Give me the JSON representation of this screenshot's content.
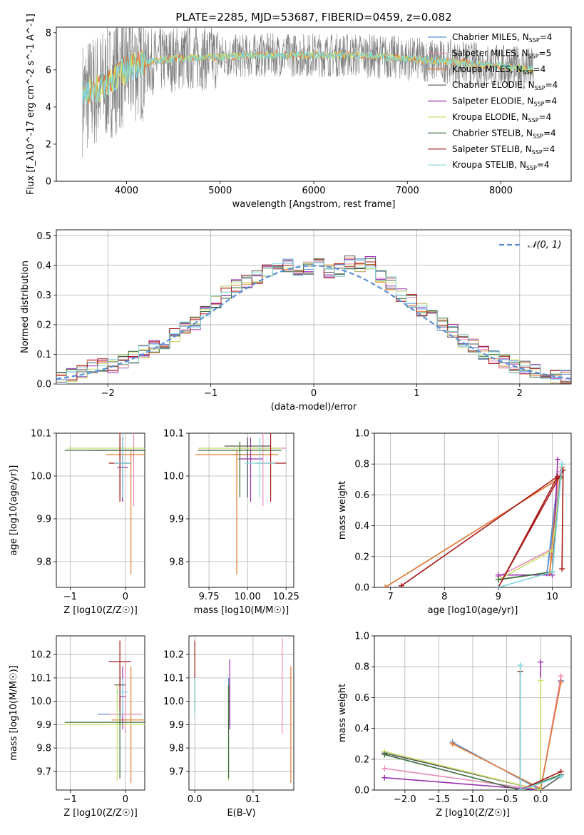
{
  "colors": {
    "chabrier_miles": "#5b8fd6",
    "salpeter_miles": "#e88ab8",
    "kroupa_miles": "#e87a2e",
    "chabrier_elodie": "#555555",
    "salpeter_elodie": "#9a2fb0",
    "kroupa_elodie": "#c8e06a",
    "chabrier_stelib": "#3a6e3a",
    "salpeter_stelib": "#a81818",
    "kroupa_stelib": "#7fd6dc",
    "normal": "#5b8fd6",
    "grid": "#b0b0b0"
  },
  "chart_data": [
    {
      "id": "spectrum",
      "type": "line",
      "title": "PLATE=2285, MJD=53687, FIBERID=0459, z=0.082",
      "xlabel": "wavelength [Angstrom, rest frame]",
      "ylabel": "Flux [f_λ10^-17 erg cm^-2 s^-1 A^-1]",
      "xlim": [
        3250,
        8750
      ],
      "ylim": [
        0,
        8.3
      ],
      "xticks": [
        "4000",
        "5000",
        "6000",
        "7000",
        "8000"
      ],
      "yticks": [
        "0",
        "2",
        "4",
        "6",
        "8"
      ],
      "grid": false,
      "legend_position": "top-right",
      "data_range": [
        3530,
        8350
      ],
      "continuum": [
        [
          3530,
          4.5
        ],
        [
          3700,
          5.0
        ],
        [
          3900,
          5.7
        ],
        [
          4100,
          6.3
        ],
        [
          4500,
          6.6
        ],
        [
          5000,
          6.7
        ],
        [
          5500,
          6.8
        ],
        [
          6000,
          6.8
        ],
        [
          6500,
          6.8
        ],
        [
          7000,
          6.6
        ],
        [
          7500,
          6.4
        ],
        [
          8000,
          6.2
        ],
        [
          8350,
          6.0
        ]
      ],
      "legend": [
        {
          "text": "Chabrier MILES, N",
          "sub": "SSP",
          "tail": "=4",
          "color": "chabrier_miles"
        },
        {
          "text": "Salpeter MILES, N",
          "sub": "SSP",
          "tail": "=5",
          "color": "salpeter_miles"
        },
        {
          "text": "Kroupa MILES, N",
          "sub": "SSP",
          "tail": "=4",
          "color": "kroupa_miles"
        },
        {
          "text": "Chabrier ELODIE, N",
          "sub": "SSP",
          "tail": "=4",
          "color": "chabrier_elodie"
        },
        {
          "text": "Salpeter ELODIE, N",
          "sub": "SSP",
          "tail": "=4",
          "color": "salpeter_elodie"
        },
        {
          "text": "Kroupa ELODIE, N",
          "sub": "SSP",
          "tail": "=4",
          "color": "kroupa_elodie"
        },
        {
          "text": "Chabrier STELIB, N",
          "sub": "SSP",
          "tail": "=4",
          "color": "chabrier_stelib"
        },
        {
          "text": "Salpeter STELIB, N",
          "sub": "SSP",
          "tail": "=4",
          "color": "salpeter_stelib"
        },
        {
          "text": "Kroupa STELIB, N",
          "sub": "SSP",
          "tail": "=4",
          "color": "kroupa_stelib"
        }
      ]
    },
    {
      "id": "residuals",
      "type": "line",
      "xlabel": "(data-model)/error",
      "ylabel": "Normed distribution",
      "xlim": [
        -2.5,
        2.5
      ],
      "ylim": [
        0,
        0.52
      ],
      "xticks": [
        "−2",
        "−1",
        "0",
        "1",
        "2"
      ],
      "yticks": [
        "0.0",
        "0.1",
        "0.2",
        "0.3",
        "0.4",
        "0.5"
      ],
      "grid": true,
      "legend": [
        {
          "text": "𝒩(0, 1)",
          "color": "normal"
        }
      ],
      "legend_position": "top-right",
      "bin_width": 0.1,
      "bins_start": -2.5,
      "bins_values": [
        0.02,
        0.03,
        0.04,
        0.06,
        0.065,
        0.06,
        0.075,
        0.09,
        0.11,
        0.125,
        0.14,
        0.165,
        0.19,
        0.205,
        0.24,
        0.275,
        0.31,
        0.33,
        0.345,
        0.36,
        0.385,
        0.41,
        0.4,
        0.375,
        0.39,
        0.4,
        0.38,
        0.385,
        0.41,
        0.4,
        0.41,
        0.36,
        0.34,
        0.3,
        0.28,
        0.25,
        0.235,
        0.2,
        0.18,
        0.145,
        0.13,
        0.105,
        0.09,
        0.075,
        0.06,
        0.055,
        0.045,
        0.035,
        0.025,
        0.025
      ]
    },
    {
      "id": "age_vs_Z",
      "type": "scatter",
      "xlabel": "Z [log10(Z/Z☉)]",
      "ylabel": "age [log10(age/yr)]",
      "xlim": [
        -1.25,
        0.35
      ],
      "ylim": [
        9.74,
        10.1
      ],
      "xticks": [
        "−1",
        "0"
      ],
      "yticks": [
        "9.8",
        "9.9",
        "10.0",
        "10.1"
      ],
      "grid": true,
      "points": [
        {
          "x": -0.05,
          "xerr": 0.15,
          "y": 10.03,
          "ylo": 9.94,
          "yhi": 10.09,
          "color": "chabrier_miles"
        },
        {
          "x": 0.15,
          "xerr": 0.2,
          "y": 10.06,
          "ylo": 9.93,
          "yhi": 10.11,
          "color": "salpeter_miles"
        },
        {
          "x": 0.1,
          "xerr": 0.45,
          "y": 10.05,
          "ylo": 9.77,
          "yhi": 10.06,
          "color": "kroupa_miles"
        },
        {
          "x": -0.1,
          "xerr": 0.55,
          "y": 10.06,
          "ylo": 9.96,
          "yhi": 10.09,
          "color": "chabrier_elodie"
        },
        {
          "x": -0.05,
          "xerr": 0.1,
          "y": 10.02,
          "ylo": 9.94,
          "yhi": 10.09,
          "color": "salpeter_elodie"
        },
        {
          "x": -0.1,
          "xerr": 0.95,
          "y": 10.065,
          "ylo": 9.95,
          "yhi": 10.09,
          "color": "kroupa_elodie"
        },
        {
          "x": -0.1,
          "xerr": 1.0,
          "y": 10.06,
          "ylo": 9.95,
          "yhi": 10.08,
          "color": "chabrier_stelib"
        },
        {
          "x": -0.1,
          "xerr": 0.2,
          "y": 10.03,
          "ylo": 9.94,
          "yhi": 10.1,
          "color": "salpeter_stelib"
        },
        {
          "x": -0.05,
          "xerr": 0.15,
          "y": 10.03,
          "ylo": 9.95,
          "yhi": 10.1,
          "color": "kroupa_stelib"
        }
      ]
    },
    {
      "id": "age_vs_mass",
      "type": "scatter",
      "xlabel": "mass [log10(M/M☉)]",
      "ylabel": "",
      "xlim": [
        9.62,
        10.3
      ],
      "ylim": [
        9.74,
        10.1
      ],
      "xticks": [
        "9.75",
        "10.00",
        "10.25"
      ],
      "yticks": [
        "9.8",
        "9.9",
        "10.0",
        "10.1"
      ],
      "grid": true,
      "points": [
        {
          "x": 10.0,
          "xerr": 0.1,
          "y": 10.05,
          "ylo": 9.95,
          "yhi": 10.09,
          "color": "chabrier_miles"
        },
        {
          "x": 10.1,
          "xerr": 0.15,
          "y": 10.065,
          "ylo": 9.93,
          "yhi": 10.11,
          "color": "salpeter_miles"
        },
        {
          "x": 9.93,
          "xerr": 0.27,
          "y": 10.05,
          "ylo": 9.77,
          "yhi": 10.06,
          "color": "kroupa_miles"
        },
        {
          "x": 10.0,
          "xerr": 0.15,
          "y": 10.07,
          "ylo": 9.95,
          "yhi": 10.09,
          "color": "chabrier_elodie"
        },
        {
          "x": 10.02,
          "xerr": 0.08,
          "y": 10.04,
          "ylo": 9.94,
          "yhi": 10.09,
          "color": "salpeter_elodie"
        },
        {
          "x": 9.95,
          "xerr": 0.27,
          "y": 10.065,
          "ylo": 9.96,
          "yhi": 10.08,
          "color": "kroupa_elodie"
        },
        {
          "x": 9.95,
          "xerr": 0.27,
          "y": 10.06,
          "ylo": 9.95,
          "yhi": 10.08,
          "color": "chabrier_stelib"
        },
        {
          "x": 10.15,
          "xerr": 0.1,
          "y": 10.03,
          "ylo": 9.94,
          "yhi": 10.1,
          "color": "salpeter_stelib"
        },
        {
          "x": 10.08,
          "xerr": 0.1,
          "y": 10.03,
          "ylo": 9.95,
          "yhi": 10.09,
          "color": "kroupa_stelib"
        }
      ]
    },
    {
      "id": "weight_vs_age",
      "type": "line",
      "xlabel": "age [log10(age/yr)]",
      "ylabel": "mass weight",
      "xlim": [
        6.7,
        10.35
      ],
      "ylim": [
        0,
        1.0
      ],
      "xticks": [
        "7",
        "8",
        "9",
        "10"
      ],
      "yticks": [
        "0.0",
        "0.2",
        "0.4",
        "0.6",
        "0.8",
        "1.0"
      ],
      "grid": true,
      "series": [
        {
          "color": "chabrier_miles",
          "points": [
            [
              6.9,
              0.0
            ],
            [
              10.1,
              0.7
            ],
            [
              9.9,
              0.09
            ],
            [
              10.18,
              0.8
            ]
          ]
        },
        {
          "color": "salpeter_miles",
          "points": [
            [
              9.0,
              0.07
            ],
            [
              10.0,
              0.25
            ],
            [
              10.15,
              0.75
            ]
          ]
        },
        {
          "color": "kroupa_miles",
          "points": [
            [
              6.9,
              0.0
            ],
            [
              10.1,
              0.7
            ],
            [
              9.95,
              0.09
            ],
            [
              10.18,
              0.78
            ]
          ]
        },
        {
          "color": "chabrier_elodie",
          "points": [
            [
              9.0,
              0.05
            ],
            [
              10.0,
              0.1
            ],
            [
              10.15,
              0.72
            ]
          ]
        },
        {
          "color": "salpeter_elodie",
          "points": [
            [
              9.0,
              0.08
            ],
            [
              10.0,
              0.08
            ],
            [
              10.1,
              0.83
            ]
          ]
        },
        {
          "color": "kroupa_elodie",
          "points": [
            [
              9.0,
              0.05
            ],
            [
              10.0,
              0.24
            ],
            [
              10.15,
              0.7
            ]
          ]
        },
        {
          "color": "chabrier_stelib",
          "points": [
            [
              9.0,
              0.05
            ],
            [
              10.0,
              0.1
            ],
            [
              10.15,
              0.71
            ]
          ]
        },
        {
          "color": "salpeter_stelib",
          "points": [
            [
              7.2,
              0.01
            ],
            [
              10.1,
              0.72
            ],
            [
              9.0,
              0.0
            ],
            [
              10.2,
              0.76
            ],
            [
              10.18,
              0.12
            ]
          ]
        },
        {
          "color": "kroupa_stelib",
          "points": [
            [
              9.0,
              0.0
            ],
            [
              10.0,
              0.1
            ],
            [
              10.18,
              0.8
            ]
          ]
        }
      ]
    },
    {
      "id": "mass_vs_Z",
      "type": "scatter",
      "xlabel": "Z [log10(Z/Z☉)]",
      "ylabel": "mass [log10(M/M☉)]",
      "xlim": [
        -1.25,
        0.35
      ],
      "ylim": [
        9.62,
        10.28
      ],
      "xticks": [
        "−1",
        "0"
      ],
      "yticks": [
        "9.7",
        "9.8",
        "9.9",
        "10.0",
        "10.1",
        "10.2"
      ],
      "grid": true,
      "points": [
        {
          "x": -0.1,
          "xerr": 0.4,
          "y": 9.945,
          "ylo": 9.9,
          "yhi": 10.1,
          "color": "chabrier_miles"
        },
        {
          "x": 0.0,
          "xerr": 0.3,
          "y": 9.945,
          "ylo": 9.86,
          "yhi": 10.17,
          "color": "salpeter_miles"
        },
        {
          "x": 0.1,
          "xerr": 0.35,
          "y": 9.92,
          "ylo": 9.65,
          "yhi": 10.15,
          "color": "kroupa_miles"
        },
        {
          "x": -0.1,
          "xerr": 0.1,
          "y": 10.07,
          "ylo": 9.9,
          "yhi": 10.15,
          "color": "chabrier_elodie"
        },
        {
          "x": -0.05,
          "xerr": 0.05,
          "y": 10.02,
          "ylo": 9.88,
          "yhi": 10.15,
          "color": "salpeter_elodie"
        },
        {
          "x": -0.15,
          "xerr": 0.95,
          "y": 9.9,
          "ylo": 9.66,
          "yhi": 10.07,
          "color": "kroupa_elodie"
        },
        {
          "x": -0.1,
          "xerr": 1.0,
          "y": 9.91,
          "ylo": 9.67,
          "yhi": 10.07,
          "color": "chabrier_stelib"
        },
        {
          "x": -0.1,
          "xerr": 0.2,
          "y": 10.17,
          "ylo": 9.96,
          "yhi": 10.26,
          "color": "salpeter_stelib"
        },
        {
          "x": -0.05,
          "xerr": 0.1,
          "y": 10.04,
          "ylo": 9.94,
          "yhi": 10.1,
          "color": "kroupa_stelib"
        }
      ]
    },
    {
      "id": "mass_vs_ebv",
      "type": "scatter",
      "xlabel": "E(B-V)",
      "ylabel": "",
      "xlim": [
        -0.01,
        0.17
      ],
      "ylim": [
        9.62,
        10.28
      ],
      "xticks": [
        "0.0",
        "0.1"
      ],
      "yticks": [
        "9.7",
        "9.8",
        "9.9",
        "10.0",
        "10.1",
        "10.2"
      ],
      "grid": true,
      "points": [
        {
          "x": 0.058,
          "ylo": 9.9,
          "yhi": 10.1,
          "color": "chabrier_miles"
        },
        {
          "x": 0.15,
          "ylo": 9.86,
          "yhi": 10.27,
          "color": "salpeter_miles"
        },
        {
          "x": 0.165,
          "ylo": 9.65,
          "yhi": 10.15,
          "color": "kroupa_miles"
        },
        {
          "x": 0.06,
          "ylo": 9.9,
          "yhi": 10.1,
          "color": "chabrier_elodie"
        },
        {
          "x": 0.06,
          "ylo": 9.88,
          "yhi": 10.18,
          "color": "salpeter_elodie"
        },
        {
          "x": 0.058,
          "ylo": 9.66,
          "yhi": 10.07,
          "color": "kroupa_elodie"
        },
        {
          "x": 0.058,
          "ylo": 9.67,
          "yhi": 10.07,
          "color": "chabrier_stelib"
        },
        {
          "x": 0.0,
          "ylo": 9.96,
          "yhi": 10.26,
          "color": "salpeter_stelib"
        },
        {
          "x": 0.0,
          "ylo": 9.94,
          "yhi": 10.1,
          "color": "kroupa_stelib"
        }
      ]
    },
    {
      "id": "weight_vs_Z",
      "type": "line",
      "xlabel": "Z [log10(Z/Z☉)]",
      "ylabel": "mass weight",
      "xlim": [
        -2.45,
        0.45
      ],
      "ylim": [
        0,
        1.0
      ],
      "xticks": [
        "−2.0",
        "−1.5",
        "−1.0",
        "−0.5",
        "0.0"
      ],
      "yticks": [
        "0.0",
        "0.2",
        "0.4",
        "0.6",
        "0.8",
        "1.0"
      ],
      "grid": true,
      "series": [
        {
          "color": "chabrier_miles",
          "points": [
            [
              -1.3,
              0.31
            ],
            [
              0.0,
              0.0
            ],
            [
              0.3,
              0.71
            ]
          ]
        },
        {
          "color": "salpeter_miles",
          "points": [
            [
              -2.3,
              0.14
            ],
            [
              0.0,
              0.0
            ],
            [
              0.3,
              0.74
            ]
          ]
        },
        {
          "color": "kroupa_miles",
          "points": [
            [
              -1.3,
              0.3
            ],
            [
              0.0,
              0.01
            ],
            [
              0.3,
              0.7
            ]
          ]
        },
        {
          "color": "chabrier_elodie",
          "points": [
            [
              -2.3,
              0.24
            ],
            [
              0.0,
              0.0
            ],
            [
              0.3,
              0.09
            ]
          ]
        },
        {
          "color": "salpeter_elodie",
          "points": [
            [
              -2.3,
              0.08
            ],
            [
              0.0,
              0.0
            ],
            [
              0.0,
              0.83
            ]
          ]
        },
        {
          "color": "kroupa_elodie",
          "points": [
            [
              -2.3,
              0.25
            ],
            [
              0.0,
              0.0
            ],
            [
              0.0,
              0.71
            ]
          ]
        },
        {
          "color": "chabrier_stelib",
          "points": [
            [
              -2.3,
              0.23
            ],
            [
              -0.3,
              0.0
            ],
            [
              0.3,
              0.1
            ]
          ]
        },
        {
          "color": "salpeter_stelib",
          "points": [
            [
              -0.3,
              0.77
            ],
            [
              -0.3,
              0.0
            ],
            [
              0.3,
              0.12
            ]
          ]
        },
        {
          "color": "kroupa_stelib",
          "points": [
            [
              -0.3,
              0.81
            ],
            [
              -0.3,
              0.0
            ],
            [
              0.3,
              0.09
            ]
          ]
        }
      ]
    }
  ]
}
